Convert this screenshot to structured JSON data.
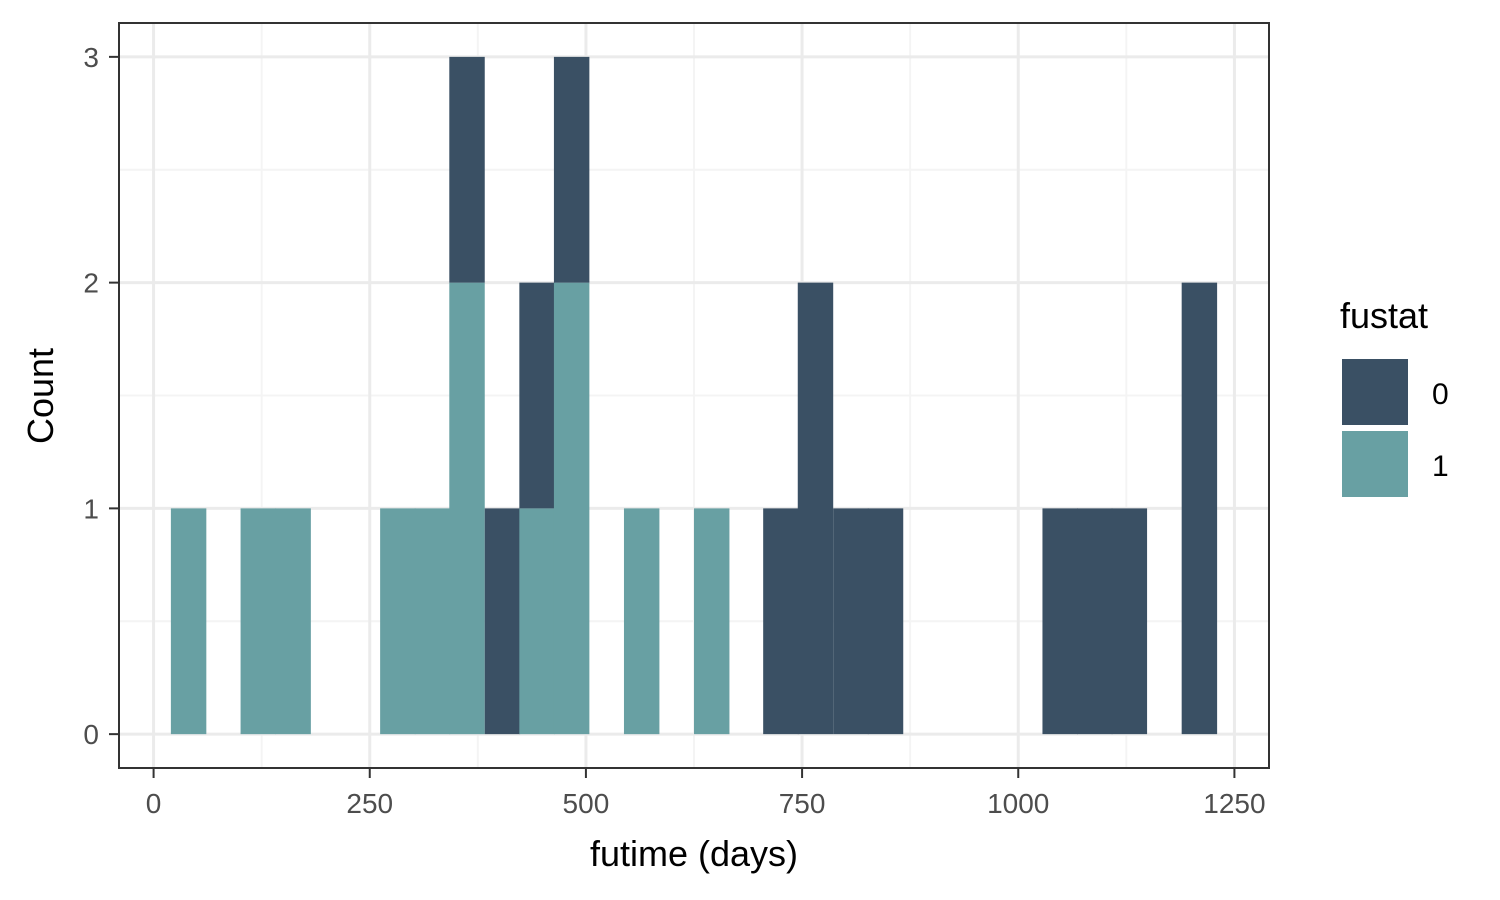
{
  "chart_data": {
    "type": "bar",
    "subtype": "stacked-histogram",
    "xlabel": "futime (days)",
    "ylabel": "Count",
    "xlim": [
      -40,
      1290
    ],
    "ylim": [
      -0.15,
      3.15
    ],
    "x_ticks": [
      0,
      250,
      500,
      750,
      1000,
      1250
    ],
    "x_tick_labels": [
      "0",
      "250",
      "500",
      "750",
      "1000",
      "1250"
    ],
    "y_ticks": [
      0,
      1,
      2,
      3
    ],
    "y_tick_labels": [
      "0",
      "1",
      "2",
      "3"
    ],
    "grid": true,
    "legend_position": "right",
    "legend": {
      "title": "fustat",
      "entries": [
        {
          "label": "0",
          "color": "#3a5064"
        },
        {
          "label": "1",
          "color": "#68a0a3"
        }
      ]
    },
    "bin_width": 40.3,
    "bins": [
      {
        "x0": 20,
        "count_0": 0,
        "count_1": 1
      },
      {
        "x0": 100.6,
        "count_0": 0,
        "count_1": 1
      },
      {
        "x0": 140.9,
        "count_0": 0,
        "count_1": 1
      },
      {
        "x0": 262,
        "count_0": 0,
        "count_1": 1
      },
      {
        "x0": 302,
        "count_0": 0,
        "count_1": 1
      },
      {
        "x0": 342,
        "count_0": 1,
        "count_1": 2
      },
      {
        "x0": 383,
        "count_0": 1,
        "count_1": 0
      },
      {
        "x0": 423,
        "count_0": 1,
        "count_1": 1
      },
      {
        "x0": 463,
        "count_0": 1,
        "count_1": 2
      },
      {
        "x0": 544,
        "count_0": 0,
        "count_1": 1
      },
      {
        "x0": 625,
        "count_0": 0,
        "count_1": 1
      },
      {
        "x0": 705,
        "count_0": 1,
        "count_1": 0
      },
      {
        "x0": 745,
        "count_0": 2,
        "count_1": 0
      },
      {
        "x0": 786,
        "count_0": 1,
        "count_1": 0
      },
      {
        "x0": 826,
        "count_0": 1,
        "count_1": 0
      },
      {
        "x0": 1028,
        "count_0": 1,
        "count_1": 0
      },
      {
        "x0": 1068,
        "count_0": 1,
        "count_1": 0
      },
      {
        "x0": 1108,
        "count_0": 1,
        "count_1": 0
      },
      {
        "x0": 1189,
        "count_0": 2,
        "count_1": 0
      }
    ],
    "colors": {
      "fustat_0": "#3a5064",
      "fustat_1": "#68a0a3",
      "grid_major": "#ebebeb",
      "grid_minor": "#f4f4f4",
      "panel_border": "#333333"
    }
  }
}
